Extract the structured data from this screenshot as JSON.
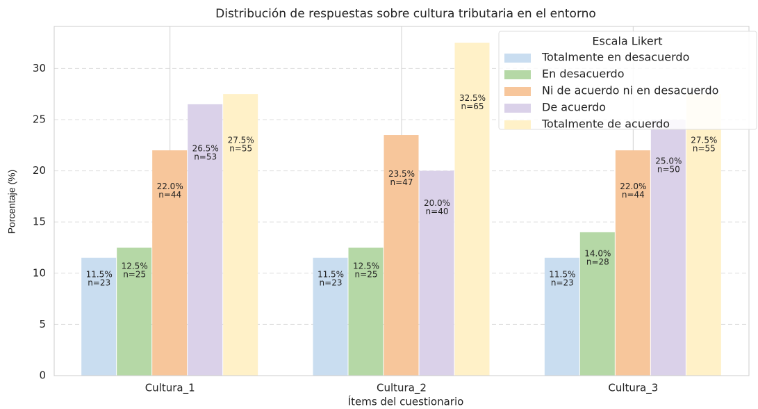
{
  "chart_data": {
    "type": "bar",
    "title": "Distribución de respuestas sobre cultura tributaria en el entorno",
    "xlabel": "Ítems del cuestionario",
    "ylabel": "Porcentaje (%)",
    "categories": [
      "Cultura_1",
      "Cultura_2",
      "Cultura_3"
    ],
    "ylim": [
      0,
      34.1
    ],
    "yticks": [
      0,
      5,
      10,
      15,
      20,
      25,
      30
    ],
    "grid": true,
    "legend": {
      "title": "Escala Likert",
      "position": "upper right"
    },
    "series": [
      {
        "name": "Totalmente en desacuerdo",
        "color": "#c9ddf0",
        "values": [
          11.5,
          11.5,
          11.5
        ],
        "value_labels": [
          "11.5%",
          "11.5%",
          "11.5%"
        ],
        "count_labels": [
          "n=23",
          "n=23",
          "n=23"
        ]
      },
      {
        "name": "En desacuerdo",
        "color": "#b5d8a6",
        "values": [
          12.5,
          12.5,
          14.0
        ],
        "value_labels": [
          "12.5%",
          "12.5%",
          "14.0%"
        ],
        "count_labels": [
          "n=25",
          "n=25",
          "n=28"
        ]
      },
      {
        "name": "Ni de acuerdo ni en desacuerdo",
        "color": "#f7c69b",
        "values": [
          22.0,
          23.5,
          22.0
        ],
        "value_labels": [
          "22.0%",
          "23.5%",
          "22.0%"
        ],
        "count_labels": [
          "n=44",
          "n=47",
          "n=44"
        ]
      },
      {
        "name": "De acuerdo",
        "color": "#dad1e9",
        "values": [
          26.5,
          20.0,
          25.0
        ],
        "value_labels": [
          "26.5%",
          "20.0%",
          "25.0%"
        ],
        "count_labels": [
          "n=53",
          "n=40",
          "n=50"
        ]
      },
      {
        "name": "Totalmente de acuerdo",
        "color": "#fff1c8",
        "values": [
          27.5,
          32.5,
          27.5
        ],
        "value_labels": [
          "27.5%",
          "32.5%",
          "27.5%"
        ],
        "count_labels": [
          "n=55",
          "n=65",
          "n=55"
        ]
      }
    ]
  }
}
